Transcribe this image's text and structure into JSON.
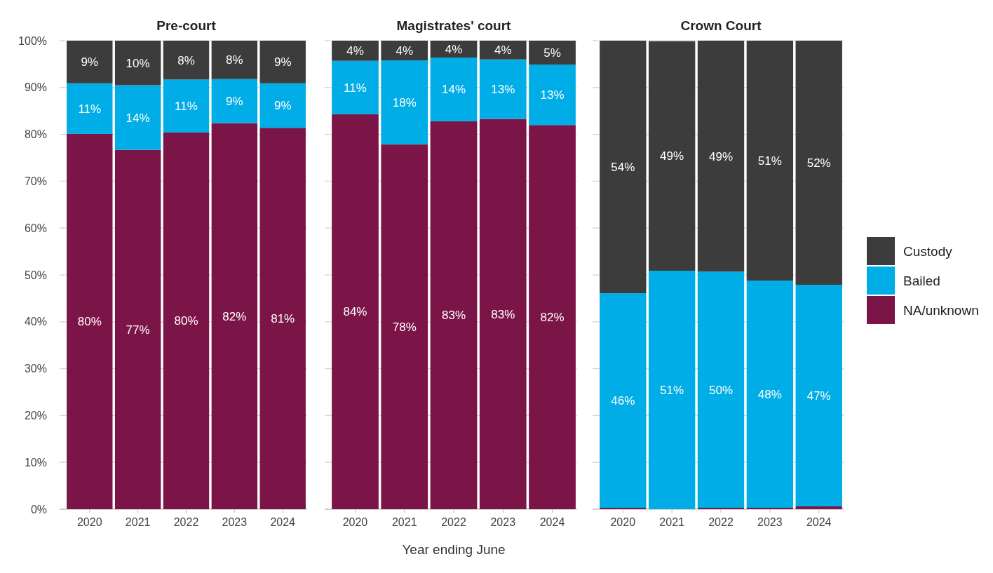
{
  "chart_data": [
    {
      "type": "bar",
      "stacked": true,
      "title": "Pre-court",
      "categories": [
        "2020",
        "2021",
        "2022",
        "2023",
        "2024"
      ],
      "ylim": [
        0,
        100
      ],
      "yticks": [
        {
          "value": 0,
          "label": "0%"
        },
        {
          "value": 10,
          "label": "10%"
        },
        {
          "value": 20,
          "label": "20%"
        },
        {
          "value": 30,
          "label": "30%"
        },
        {
          "value": 40,
          "label": "40%"
        },
        {
          "value": 50,
          "label": "50%"
        },
        {
          "value": 60,
          "label": "60%"
        },
        {
          "value": 70,
          "label": "70%"
        },
        {
          "value": 80,
          "label": "80%"
        },
        {
          "value": 90,
          "label": "90%"
        },
        {
          "value": 100,
          "label": "100%"
        }
      ],
      "grid": "y",
      "legend": false,
      "series": [
        {
          "color": "#7b1548",
          "values": [
            80.1,
            76.7,
            80.4,
            82.4,
            81.4
          ],
          "value_labels": [
            "80%",
            "77%",
            "80%",
            "82%",
            "81%"
          ]
        },
        {
          "color": "#00ade6",
          "values": [
            10.8,
            13.8,
            11.3,
            9.4,
            9.5
          ],
          "value_labels": [
            "11%",
            "14%",
            "11%",
            "9%",
            "9%"
          ]
        },
        {
          "color": "#3c3c3c",
          "values": [
            9.1,
            9.5,
            8.3,
            8.2,
            9.1
          ],
          "value_labels": [
            "9%",
            "10%",
            "8%",
            "8%",
            "9%"
          ]
        }
      ]
    },
    {
      "type": "bar",
      "stacked": true,
      "title": "Magistrates' court",
      "xlabel": "Year ending June",
      "categories": [
        "2020",
        "2021",
        "2022",
        "2023",
        "2024"
      ],
      "ylim": [
        0,
        100
      ],
      "yticks": [
        {
          "value": 0,
          "label": null
        },
        {
          "value": 10,
          "label": null
        },
        {
          "value": 20,
          "label": null
        },
        {
          "value": 30,
          "label": null
        },
        {
          "value": 40,
          "label": null
        },
        {
          "value": 50,
          "label": null
        },
        {
          "value": 60,
          "label": null
        },
        {
          "value": 70,
          "label": null
        },
        {
          "value": 80,
          "label": null
        },
        {
          "value": 90,
          "label": null
        },
        {
          "value": 100,
          "label": null
        }
      ],
      "grid": "y",
      "legend": false,
      "tick_labels": "x",
      "series": [
        {
          "color": "#7b1548",
          "values": [
            84.3,
            77.9,
            82.8,
            83.3,
            82.0
          ],
          "value_labels": [
            "84%",
            "78%",
            "83%",
            "83%",
            "82%"
          ]
        },
        {
          "color": "#00ade6",
          "values": [
            11.4,
            17.9,
            13.6,
            12.7,
            12.9
          ],
          "value_labels": [
            "11%",
            "18%",
            "14%",
            "13%",
            "13%"
          ]
        },
        {
          "color": "#3c3c3c",
          "values": [
            4.3,
            4.2,
            3.6,
            4.0,
            5.1
          ],
          "value_labels": [
            "4%",
            "4%",
            "4%",
            "4%",
            "5%"
          ]
        }
      ]
    },
    {
      "type": "bar",
      "stacked": true,
      "title": "Crown Court",
      "categories": [
        "2020",
        "2021",
        "2022",
        "2023",
        "2024"
      ],
      "ylim": [
        0,
        100
      ],
      "yticks": [
        {
          "value": 0,
          "label": null
        },
        {
          "value": 10,
          "label": null
        },
        {
          "value": 20,
          "label": null
        },
        {
          "value": 30,
          "label": null
        },
        {
          "value": 40,
          "label": null
        },
        {
          "value": 50,
          "label": null
        },
        {
          "value": 60,
          "label": null
        },
        {
          "value": 70,
          "label": null
        },
        {
          "value": 80,
          "label": null
        },
        {
          "value": 90,
          "label": null
        },
        {
          "value": 100,
          "label": null
        }
      ],
      "grid": "y",
      "legend": "right",
      "tick_labels": "x",
      "series": [
        {
          "name": "NA/unknown",
          "color": "#7b1548",
          "values": [
            0.3,
            null,
            0.3,
            0.3,
            0.6
          ],
          "value_labels": [
            null,
            null,
            null,
            null,
            null
          ]
        },
        {
          "name": "Bailed",
          "color": "#00ade6",
          "values": [
            45.8,
            50.9,
            50.4,
            48.5,
            47.3
          ],
          "value_labels": [
            "46%",
            "51%",
            "50%",
            "48%",
            "47%"
          ]
        },
        {
          "name": "Custody",
          "color": "#3c3c3c",
          "values": [
            53.9,
            49.0,
            49.3,
            51.2,
            52.1
          ],
          "value_labels": [
            "54%",
            "49%",
            "49%",
            "51%",
            "52%"
          ]
        }
      ]
    }
  ]
}
